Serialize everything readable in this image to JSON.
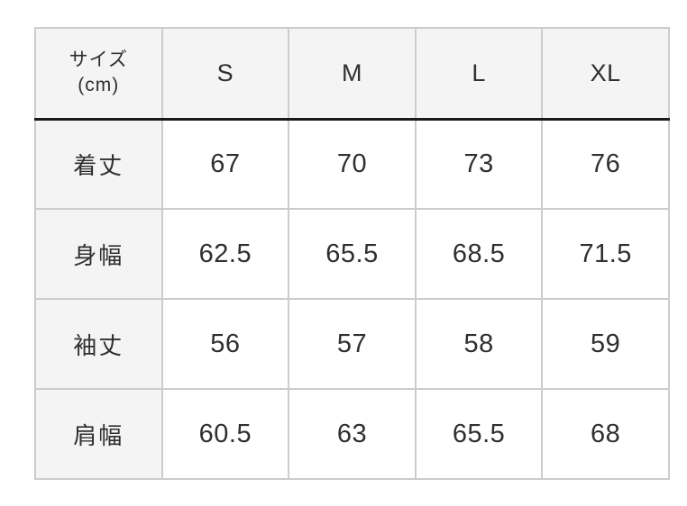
{
  "chart_data": {
    "type": "table",
    "corner_header": {
      "line1": "サイズ",
      "line2": "(cm)"
    },
    "columns": [
      "S",
      "M",
      "L",
      "XL"
    ],
    "rows": [
      {
        "label": "着丈",
        "values": [
          "67",
          "70",
          "73",
          "76"
        ]
      },
      {
        "label": "身幅",
        "values": [
          "62.5",
          "65.5",
          "68.5",
          "71.5"
        ]
      },
      {
        "label": "袖丈",
        "values": [
          "56",
          "57",
          "58",
          "59"
        ]
      },
      {
        "label": "肩幅",
        "values": [
          "60.5",
          "63",
          "65.5",
          "68"
        ]
      }
    ]
  },
  "colors": {
    "page_bg": "#ffffff",
    "header_bg": "#f4f4f4",
    "cell_bg": "#ffffff",
    "grid_border": "#cccccc",
    "header_rule": "#1a1a1a",
    "text": "#2f2f2f"
  }
}
